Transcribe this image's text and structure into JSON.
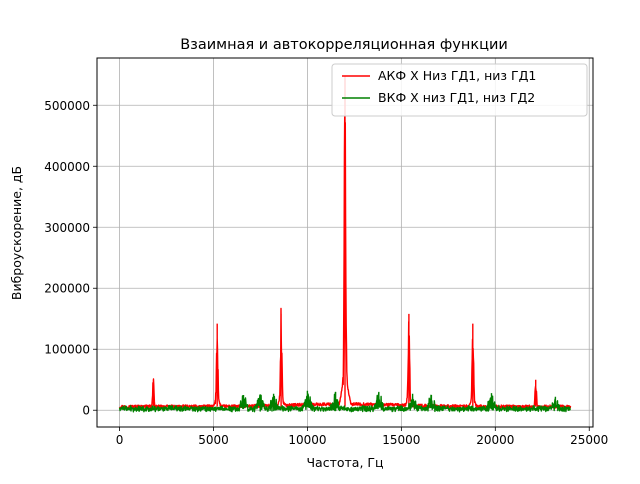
{
  "chart_data": {
    "type": "line",
    "title": "Взаимная и автокорреляционная функции",
    "xlabel": "Частота, Гц",
    "ylabel": "Виброускорение, дБ",
    "xlim": [
      -1200,
      25200
    ],
    "ylim": [
      -27500,
      577500
    ],
    "x_ticks": [
      0,
      5000,
      10000,
      15000,
      20000,
      25000
    ],
    "x_tick_labels": [
      "0",
      "5000",
      "10000",
      "15000",
      "20000",
      "25000"
    ],
    "y_ticks": [
      0,
      100000,
      200000,
      300000,
      400000,
      500000
    ],
    "y_tick_labels": [
      "0",
      "100000",
      "200000",
      "300000",
      "400000",
      "500000"
    ],
    "grid": true,
    "legend_position": "top-right",
    "series": [
      {
        "name": "АКФ X Низ ГД1, низ ГД1",
        "color": "#ff0000",
        "x_range": [
          0,
          24000
        ],
        "baseline": 6000,
        "noise_amplitude": 5000,
        "peaks": [
          {
            "x": 1800,
            "y": 50000
          },
          {
            "x": 5200,
            "y": 142000
          },
          {
            "x": 8600,
            "y": 158000
          },
          {
            "x": 12000,
            "y": 548000
          },
          {
            "x": 15400,
            "y": 158000
          },
          {
            "x": 18800,
            "y": 142000
          },
          {
            "x": 22150,
            "y": 50000
          }
        ]
      },
      {
        "name": "ВКФ X низ ГД1, низ ГД2",
        "color": "#008000",
        "x_range": [
          0,
          24000
        ],
        "baseline": 5000,
        "noise_amplitude": 9000,
        "peaks": [
          {
            "x": 6600,
            "y": 25000
          },
          {
            "x": 7500,
            "y": 26000
          },
          {
            "x": 8200,
            "y": 27000
          },
          {
            "x": 10000,
            "y": 32000
          },
          {
            "x": 11500,
            "y": 30000
          },
          {
            "x": 13800,
            "y": 30000
          },
          {
            "x": 15600,
            "y": 27000
          },
          {
            "x": 16600,
            "y": 25000
          },
          {
            "x": 19800,
            "y": 28000
          },
          {
            "x": 23200,
            "y": 22000
          }
        ]
      }
    ]
  }
}
